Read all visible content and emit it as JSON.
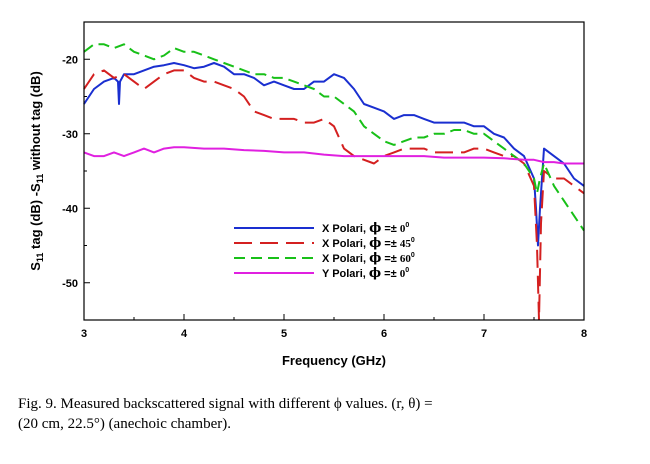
{
  "chart_data": {
    "type": "line",
    "xlabel": "Frequency (GHz)",
    "ylabel": "S11 tag (dB) -S11 without tag (dB)",
    "ylabel_parts": {
      "s1": "S",
      "sub1": "11",
      "mid": " tag (dB) -S",
      "sub2": "11",
      "end": " without tag (dB)"
    },
    "xlim": [
      3,
      8
    ],
    "ylim": [
      -55,
      -15
    ],
    "xticks": [
      3,
      4,
      5,
      6,
      7,
      8
    ],
    "yticks": [
      -20,
      -30,
      -40,
      -50
    ],
    "xtick_labels": [
      "3",
      "4",
      "5",
      "6",
      "7",
      "8"
    ],
    "ytick_labels": [
      "-20",
      "-30",
      "-40",
      "-50"
    ],
    "grid": false,
    "legend_position": "lower-center",
    "series": [
      {
        "name": "X Polari, ϕ =± 0°",
        "legend_parts": {
          "text": "X Polari, ",
          "phi": "ϕ",
          "op": " =± ",
          "angle": "0",
          "deg": "0"
        },
        "color": "#1a2fd0",
        "dash": "solid",
        "x": [
          3.0,
          3.1,
          3.2,
          3.3,
          3.34,
          3.35,
          3.36,
          3.4,
          3.5,
          3.6,
          3.7,
          3.8,
          3.9,
          4.0,
          4.1,
          4.2,
          4.3,
          4.4,
          4.5,
          4.6,
          4.7,
          4.8,
          4.9,
          5.0,
          5.1,
          5.2,
          5.3,
          5.4,
          5.5,
          5.6,
          5.7,
          5.8,
          5.9,
          6.0,
          6.1,
          6.2,
          6.3,
          6.4,
          6.5,
          6.6,
          6.7,
          6.8,
          6.9,
          7.0,
          7.1,
          7.2,
          7.3,
          7.4,
          7.5,
          7.52,
          7.54,
          7.56,
          7.6,
          7.7,
          7.8,
          7.9,
          8.0
        ],
        "y": [
          -26,
          -24,
          -23,
          -22.5,
          -23,
          -26,
          -23,
          -22,
          -22,
          -21.5,
          -21,
          -20.8,
          -20.5,
          -20.8,
          -21.2,
          -21,
          -20.5,
          -21,
          -22,
          -22,
          -22.5,
          -23.5,
          -23,
          -23.5,
          -24,
          -24,
          -23,
          -23,
          -22,
          -22.5,
          -24,
          -26,
          -26.5,
          -27,
          -28,
          -27.5,
          -27.5,
          -28,
          -28.5,
          -28.5,
          -28.5,
          -28.5,
          -29,
          -29,
          -30,
          -30.5,
          -32,
          -33,
          -36,
          -40,
          -45,
          -40,
          -32,
          -33,
          -34,
          -36,
          -37
        ]
      },
      {
        "name": "X Polari, ϕ =± 45°",
        "legend_parts": {
          "text": "X Polari, ",
          "phi": "ϕ",
          "op": " =± ",
          "angle": "45",
          "deg": "0"
        },
        "color": "#d42020",
        "dash": "long-dash",
        "x": [
          3.0,
          3.1,
          3.2,
          3.3,
          3.4,
          3.5,
          3.6,
          3.7,
          3.8,
          3.9,
          4.0,
          4.1,
          4.2,
          4.3,
          4.4,
          4.5,
          4.6,
          4.7,
          4.8,
          4.9,
          5.0,
          5.1,
          5.2,
          5.3,
          5.4,
          5.5,
          5.6,
          5.7,
          5.8,
          5.9,
          6.0,
          6.1,
          6.2,
          6.3,
          6.4,
          6.5,
          6.6,
          6.7,
          6.8,
          6.9,
          7.0,
          7.1,
          7.2,
          7.3,
          7.4,
          7.5,
          7.53,
          7.55,
          7.57,
          7.6,
          7.7,
          7.8,
          7.9,
          8.0
        ],
        "y": [
          -24,
          -22,
          -21.5,
          -22.5,
          -22,
          -23,
          -24,
          -23,
          -22,
          -21.5,
          -21.5,
          -22.5,
          -23,
          -23,
          -23.5,
          -24,
          -25,
          -27,
          -27.5,
          -28,
          -28,
          -28,
          -28.5,
          -28.5,
          -28,
          -29,
          -32,
          -33,
          -33.5,
          -34,
          -33,
          -32.5,
          -32,
          -32,
          -32,
          -32.5,
          -32.5,
          -32.5,
          -32.5,
          -32,
          -32,
          -32.5,
          -33,
          -33,
          -34,
          -37,
          -45,
          -55,
          -42,
          -35,
          -36,
          -36,
          -37,
          -38
        ]
      },
      {
        "name": "X Polari, ϕ =± 60°",
        "legend_parts": {
          "text": "X Polari, ",
          "phi": "ϕ",
          "op": " =± ",
          "angle": "60",
          "deg": "0"
        },
        "color": "#18c018",
        "dash": "dash",
        "x": [
          3.0,
          3.1,
          3.2,
          3.3,
          3.4,
          3.5,
          3.6,
          3.7,
          3.8,
          3.9,
          4.0,
          4.1,
          4.2,
          4.3,
          4.4,
          4.5,
          4.6,
          4.7,
          4.8,
          4.9,
          5.0,
          5.1,
          5.2,
          5.3,
          5.4,
          5.5,
          5.6,
          5.7,
          5.8,
          5.9,
          6.0,
          6.1,
          6.2,
          6.3,
          6.4,
          6.5,
          6.6,
          6.7,
          6.8,
          6.9,
          7.0,
          7.1,
          7.2,
          7.3,
          7.4,
          7.5,
          7.53,
          7.56,
          7.6,
          7.7,
          7.8,
          7.9,
          8.0
        ],
        "y": [
          -19,
          -18,
          -18,
          -18.5,
          -18,
          -19,
          -19.5,
          -20,
          -19.5,
          -18.5,
          -19,
          -19,
          -19.5,
          -20,
          -20.5,
          -21,
          -21.5,
          -22,
          -22,
          -22.5,
          -22.5,
          -23,
          -23.5,
          -24,
          -25,
          -25,
          -26,
          -27,
          -29,
          -30,
          -31,
          -31.5,
          -31,
          -30.5,
          -30.5,
          -30,
          -30,
          -29.5,
          -29.5,
          -30,
          -30,
          -31,
          -32,
          -33,
          -34,
          -36,
          -38,
          -36,
          -34,
          -37,
          -39,
          -41,
          -43
        ]
      },
      {
        "name": "Y Polari, ϕ =± 0°",
        "legend_parts": {
          "text": "Y Polari, ",
          "phi": "ϕ",
          "op": " =± ",
          "angle": "0",
          "deg": "0"
        },
        "color": "#e020e0",
        "dash": "solid",
        "x": [
          3.0,
          3.1,
          3.2,
          3.3,
          3.4,
          3.5,
          3.6,
          3.7,
          3.8,
          3.9,
          4.0,
          4.2,
          4.4,
          4.6,
          4.8,
          5.0,
          5.2,
          5.4,
          5.6,
          5.8,
          6.0,
          6.2,
          6.4,
          6.6,
          6.8,
          7.0,
          7.2,
          7.4,
          7.5,
          7.6,
          7.7,
          7.8,
          7.9,
          8.0
        ],
        "y": [
          -32.5,
          -33,
          -33,
          -32.5,
          -33,
          -32.5,
          -32,
          -32.5,
          -32,
          -31.8,
          -31.8,
          -32,
          -32,
          -32.2,
          -32.3,
          -32.5,
          -32.5,
          -32.8,
          -33,
          -33,
          -33,
          -33,
          -33,
          -33.2,
          -33.2,
          -33.2,
          -33.3,
          -33.5,
          -33.5,
          -33.8,
          -33.8,
          -34,
          -34,
          -34
        ]
      }
    ]
  },
  "caption": {
    "line1": "Fig. 9.  Measured backscattered signal with different ϕ values. (r, θ)   =",
    "line2": "(20 cm, 22.5°) (anechoic chamber)."
  }
}
